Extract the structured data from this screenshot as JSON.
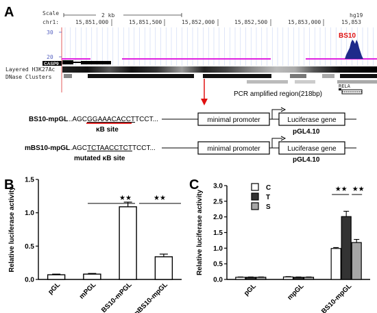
{
  "panels": {
    "a": "A",
    "b": "B",
    "c": "C"
  },
  "browser": {
    "scale_label": "Scale",
    "scale_value": "2 kb",
    "genome": "hg19",
    "chrom": "chr1:",
    "positions": [
      "15,851,000",
      "15,851,500",
      "15,852,000",
      "15,852,500",
      "15,853,000",
      "15,853"
    ],
    "y_top": "30",
    "y_bottom": "20",
    "peak_label": "BS10",
    "gene_label": "CASP9",
    "track_h3k27ac": "Layered H3K27Ac",
    "track_dnase": "DNase Clusters",
    "rela_label": "RELA",
    "pcr_label": "PCR amplified region(218bp)"
  },
  "construct1": {
    "name": "BS10-mpGL",
    "seq_pre": "...AGC",
    "seq_site": "GGAAACACCT",
    "seq_post": "TCCT...",
    "site_label": "κB site",
    "promoter": "minimal promoter",
    "gene": "Luciferase gene",
    "vector": "pGL4.10"
  },
  "construct2": {
    "name": "mBS10-mpGL",
    "seq_pre": "...AGC",
    "seq_site": "TCTAACCTCT",
    "seq_post": "TCCT...",
    "site_label": "mutated κB site",
    "promoter": "minimal promoter",
    "gene": "Luciferase gene",
    "vector": "pGL4.10"
  },
  "chart_data": [
    {
      "type": "bar",
      "panel": "B",
      "categories": [
        "pGL",
        "mPGL",
        "BS10-mPGL",
        "mBS10-mpGL"
      ],
      "values": [
        0.07,
        0.08,
        1.09,
        0.34
      ],
      "errors": [
        0.01,
        0.01,
        0.07,
        0.04
      ],
      "ylabel": "Relative luciferase activity",
      "ylim": [
        0,
        1.5
      ],
      "yticks": [
        "0.0",
        "0.5",
        "1.0",
        "1.5"
      ],
      "significance": [
        {
          "from": 1,
          "to": 2,
          "label": "★★"
        },
        {
          "from": 2,
          "to": 3,
          "label": "★★"
        }
      ]
    },
    {
      "type": "bar",
      "panel": "C",
      "categories": [
        "pGL",
        "mpGL",
        "BS10-mpGL"
      ],
      "series": [
        {
          "name": "C",
          "values": [
            0.07,
            0.08,
            0.99
          ],
          "errors": [
            0.01,
            0.01,
            0.03
          ],
          "color": "#ffffff"
        },
        {
          "name": "T",
          "values": [
            0.07,
            0.07,
            2.01
          ],
          "errors": [
            0.01,
            0.01,
            0.17
          ],
          "color": "#333333"
        },
        {
          "name": "S",
          "values": [
            0.07,
            0.07,
            1.18
          ],
          "errors": [
            0.01,
            0.01,
            0.1
          ],
          "color": "#a6a6a6"
        }
      ],
      "ylabel": "Relative luciferase activity",
      "ylim": [
        0,
        3.0
      ],
      "yticks": [
        "0.0",
        "0.5",
        "1.0",
        "1.5",
        "2.0",
        "2.5",
        "3.0"
      ],
      "legend": "top-left",
      "significance": [
        {
          "series_from": 0,
          "series_to": 1,
          "label": "★★"
        },
        {
          "series_from": 1,
          "series_to": 2,
          "label": "★★"
        }
      ]
    }
  ]
}
